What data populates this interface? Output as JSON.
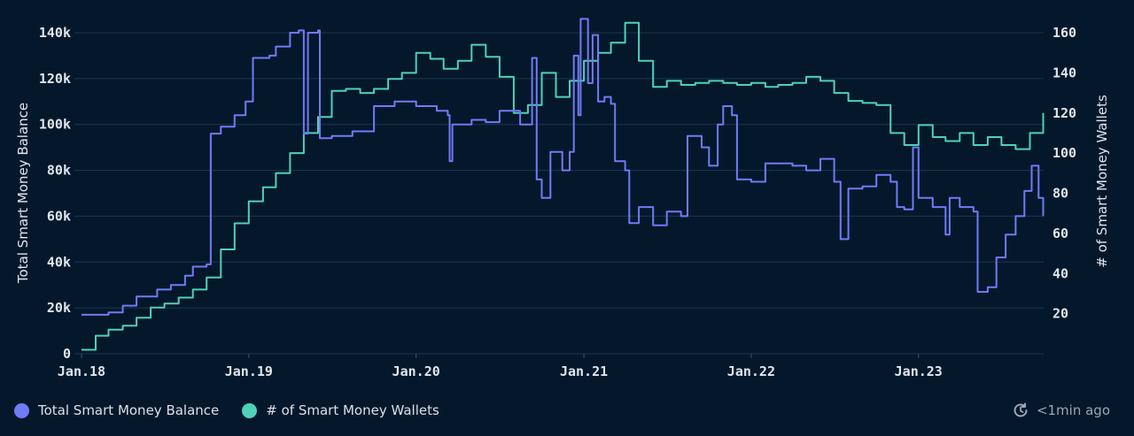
{
  "colors": {
    "balance": "#6f7bf7",
    "wallets": "#4fd1b8",
    "grid": "#1b3550",
    "background": "#05182b"
  },
  "legend": {
    "balance_label": "Total Smart Money Balance",
    "wallets_label": "# of Smart Money Wallets"
  },
  "status": {
    "updated_icon": "clock-refresh-icon",
    "updated_text": "<1min ago"
  },
  "chart_data": {
    "type": "line",
    "xlabel": "",
    "x_ticks": [
      "Jan.18",
      "Jan.19",
      "Jan.20",
      "Jan.21",
      "Jan.22",
      "Jan.23"
    ],
    "xlim": [
      "2018-01",
      "2023-08"
    ],
    "left_axis": {
      "label": "Total Smart Money Balance",
      "ticks": [
        "0",
        "20k",
        "40k",
        "60k",
        "80k",
        "100k",
        "120k",
        "140k"
      ],
      "ylim": [
        0,
        140000
      ]
    },
    "right_axis": {
      "label": "# of Smart Money Wallets",
      "ticks": [
        "20",
        "40",
        "60",
        "80",
        "100",
        "120",
        "140",
        "160"
      ],
      "ylim": [
        0,
        160
      ]
    },
    "grid": true,
    "legend_position": "bottom-left",
    "series": [
      {
        "name": "Total Smart Money Balance",
        "axis": "left",
        "points": [
          [
            "2018-01-01",
            17000
          ],
          [
            "2018-03-01",
            18000
          ],
          [
            "2018-04-01",
            21000
          ],
          [
            "2018-05-01",
            25000
          ],
          [
            "2018-06-15",
            28000
          ],
          [
            "2018-07-15",
            30000
          ],
          [
            "2018-08-15",
            34000
          ],
          [
            "2018-09-01",
            38000
          ],
          [
            "2018-10-01",
            39000
          ],
          [
            "2018-10-10",
            96000
          ],
          [
            "2018-11-01",
            99000
          ],
          [
            "2018-12-01",
            104000
          ],
          [
            "2018-12-25",
            110000
          ],
          [
            "2019-01-10",
            129000
          ],
          [
            "2019-02-15",
            130000
          ],
          [
            "2019-03-01",
            134000
          ],
          [
            "2019-04-01",
            140000
          ],
          [
            "2019-04-20",
            141000
          ],
          [
            "2019-05-01",
            96000
          ],
          [
            "2019-05-10",
            140000
          ],
          [
            "2019-06-01",
            141000
          ],
          [
            "2019-06-05",
            94000
          ],
          [
            "2019-07-01",
            95000
          ],
          [
            "2019-08-15",
            97000
          ],
          [
            "2019-10-01",
            108000
          ],
          [
            "2019-11-15",
            110000
          ],
          [
            "2020-01-01",
            108000
          ],
          [
            "2020-02-15",
            106000
          ],
          [
            "2020-03-10",
            104000
          ],
          [
            "2020-03-14",
            84000
          ],
          [
            "2020-03-20",
            100000
          ],
          [
            "2020-05-01",
            102000
          ],
          [
            "2020-06-01",
            101000
          ],
          [
            "2020-07-01",
            106000
          ],
          [
            "2020-08-15",
            100000
          ],
          [
            "2020-09-10",
            129000
          ],
          [
            "2020-09-20",
            76000
          ],
          [
            "2020-10-01",
            68000
          ],
          [
            "2020-10-20",
            88000
          ],
          [
            "2020-11-15",
            80000
          ],
          [
            "2020-12-01",
            88000
          ],
          [
            "2020-12-10",
            130000
          ],
          [
            "2020-12-20",
            104000
          ],
          [
            "2020-12-25",
            146000
          ],
          [
            "2021-01-10",
            118000
          ],
          [
            "2021-01-20",
            139000
          ],
          [
            "2021-02-01",
            110000
          ],
          [
            "2021-02-15",
            112000
          ],
          [
            "2021-03-01",
            109000
          ],
          [
            "2021-03-10",
            84000
          ],
          [
            "2021-04-01",
            80000
          ],
          [
            "2021-04-10",
            57000
          ],
          [
            "2021-05-01",
            64000
          ],
          [
            "2021-06-01",
            56000
          ],
          [
            "2021-07-01",
            62000
          ],
          [
            "2021-08-01",
            60000
          ],
          [
            "2021-08-15",
            95000
          ],
          [
            "2021-09-15",
            90000
          ],
          [
            "2021-10-01",
            82000
          ],
          [
            "2021-10-20",
            100000
          ],
          [
            "2021-11-01",
            108000
          ],
          [
            "2021-11-20",
            104000
          ],
          [
            "2021-12-01",
            76000
          ],
          [
            "2022-01-01",
            75000
          ],
          [
            "2022-02-01",
            83000
          ],
          [
            "2022-04-01",
            82000
          ],
          [
            "2022-05-01",
            80000
          ],
          [
            "2022-06-01",
            85000
          ],
          [
            "2022-07-01",
            75000
          ],
          [
            "2022-07-15",
            50000
          ],
          [
            "2022-08-01",
            72000
          ],
          [
            "2022-09-01",
            73000
          ],
          [
            "2022-10-01",
            78000
          ],
          [
            "2022-11-01",
            75000
          ],
          [
            "2022-11-15",
            64000
          ],
          [
            "2022-12-01",
            63000
          ],
          [
            "2022-12-20",
            90000
          ],
          [
            "2023-01-01",
            68000
          ],
          [
            "2023-02-01",
            64000
          ],
          [
            "2023-03-01",
            52000
          ],
          [
            "2023-03-10",
            68000
          ],
          [
            "2023-04-01",
            64000
          ],
          [
            "2023-05-01",
            62000
          ],
          [
            "2023-05-10",
            27000
          ],
          [
            "2023-06-01",
            29000
          ],
          [
            "2023-06-20",
            42000
          ],
          [
            "2023-07-10",
            52000
          ],
          [
            "2023-08-01",
            60000
          ],
          [
            "2023-08-20",
            71000
          ],
          [
            "2023-09-05",
            82000
          ],
          [
            "2023-09-20",
            68000
          ],
          [
            "2023-09-30",
            60000
          ]
        ]
      },
      {
        "name": "# of Smart Money Wallets",
        "axis": "right",
        "points": [
          [
            "2018-01-01",
            2
          ],
          [
            "2018-02-01",
            9
          ],
          [
            "2018-03-01",
            12
          ],
          [
            "2018-04-01",
            14
          ],
          [
            "2018-05-01",
            18
          ],
          [
            "2018-06-01",
            23
          ],
          [
            "2018-07-01",
            25
          ],
          [
            "2018-08-01",
            28
          ],
          [
            "2018-09-01",
            32
          ],
          [
            "2018-10-01",
            38
          ],
          [
            "2018-11-01",
            52
          ],
          [
            "2018-12-01",
            65
          ],
          [
            "2019-01-01",
            76
          ],
          [
            "2019-02-01",
            83
          ],
          [
            "2019-03-01",
            90
          ],
          [
            "2019-04-01",
            100
          ],
          [
            "2019-05-01",
            110
          ],
          [
            "2019-06-01",
            118
          ],
          [
            "2019-07-01",
            131
          ],
          [
            "2019-08-01",
            132
          ],
          [
            "2019-09-01",
            130
          ],
          [
            "2019-10-01",
            132
          ],
          [
            "2019-11-01",
            137
          ],
          [
            "2019-12-01",
            140
          ],
          [
            "2020-01-01",
            150
          ],
          [
            "2020-02-01",
            147
          ],
          [
            "2020-03-01",
            142
          ],
          [
            "2020-04-01",
            146
          ],
          [
            "2020-05-01",
            154
          ],
          [
            "2020-06-01",
            148
          ],
          [
            "2020-07-01",
            138
          ],
          [
            "2020-08-01",
            120
          ],
          [
            "2020-09-01",
            124
          ],
          [
            "2020-10-01",
            140
          ],
          [
            "2020-11-01",
            128
          ],
          [
            "2020-12-01",
            136
          ],
          [
            "2021-01-01",
            146
          ],
          [
            "2021-02-01",
            150
          ],
          [
            "2021-03-01",
            155
          ],
          [
            "2021-04-01",
            165
          ],
          [
            "2021-05-01",
            146
          ],
          [
            "2021-06-01",
            133
          ],
          [
            "2021-07-01",
            136
          ],
          [
            "2021-08-01",
            134
          ],
          [
            "2021-09-01",
            135
          ],
          [
            "2021-10-01",
            136
          ],
          [
            "2021-11-01",
            135
          ],
          [
            "2021-12-01",
            134
          ],
          [
            "2022-01-01",
            135
          ],
          [
            "2022-02-01",
            133
          ],
          [
            "2022-03-01",
            134
          ],
          [
            "2022-04-01",
            135
          ],
          [
            "2022-05-01",
            138
          ],
          [
            "2022-06-01",
            136
          ],
          [
            "2022-07-01",
            130
          ],
          [
            "2022-08-01",
            126
          ],
          [
            "2022-09-01",
            125
          ],
          [
            "2022-10-01",
            124
          ],
          [
            "2022-11-01",
            110
          ],
          [
            "2022-12-01",
            104
          ],
          [
            "2023-01-01",
            114
          ],
          [
            "2023-02-01",
            108
          ],
          [
            "2023-03-01",
            106
          ],
          [
            "2023-04-01",
            110
          ],
          [
            "2023-05-01",
            104
          ],
          [
            "2023-06-01",
            108
          ],
          [
            "2023-07-01",
            104
          ],
          [
            "2023-08-01",
            102
          ],
          [
            "2023-09-01",
            110
          ],
          [
            "2023-09-30",
            120
          ]
        ]
      }
    ]
  }
}
